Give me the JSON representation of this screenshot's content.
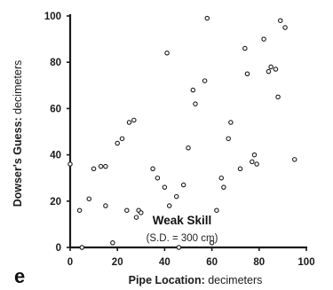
{
  "panel_label": "e",
  "chart_data": {
    "type": "scatter",
    "xlabel": {
      "bold": "Pipe Location:",
      "unit": "decimeters"
    },
    "ylabel": {
      "bold": "Dowser's Guess:",
      "unit": "decimeters"
    },
    "xlim": [
      0,
      100
    ],
    "ylim": [
      0,
      100
    ],
    "xticks": [
      "0",
      "20",
      "40",
      "60",
      "80",
      "100"
    ],
    "yticks": [
      "0",
      "20",
      "40",
      "60",
      "80",
      "100"
    ],
    "grid": false,
    "annotation": {
      "title": "Weak Skill",
      "subtitle": "(S.D. = 300 cm)"
    },
    "points": [
      [
        0,
        36
      ],
      [
        4,
        16
      ],
      [
        5,
        0
      ],
      [
        8,
        21
      ],
      [
        10,
        34
      ],
      [
        13,
        35
      ],
      [
        15,
        35
      ],
      [
        15,
        18
      ],
      [
        18,
        2
      ],
      [
        20,
        45
      ],
      [
        22,
        47
      ],
      [
        24,
        16
      ],
      [
        25,
        54
      ],
      [
        27,
        55
      ],
      [
        28,
        13
      ],
      [
        29,
        16
      ],
      [
        30,
        15
      ],
      [
        35,
        34
      ],
      [
        37,
        30
      ],
      [
        40,
        26
      ],
      [
        41,
        84
      ],
      [
        42,
        18
      ],
      [
        45,
        22
      ],
      [
        46,
        0
      ],
      [
        48,
        27
      ],
      [
        50,
        43
      ],
      [
        52,
        68
      ],
      [
        53,
        62
      ],
      [
        57,
        72
      ],
      [
        58,
        99
      ],
      [
        60,
        2
      ],
      [
        62,
        16
      ],
      [
        64,
        30
      ],
      [
        65,
        26
      ],
      [
        67,
        47
      ],
      [
        68,
        54
      ],
      [
        72,
        34
      ],
      [
        74,
        86
      ],
      [
        75,
        75
      ],
      [
        77,
        37
      ],
      [
        78,
        40
      ],
      [
        79,
        36
      ],
      [
        82,
        90
      ],
      [
        84,
        76
      ],
      [
        85,
        78
      ],
      [
        87,
        77
      ],
      [
        88,
        65
      ],
      [
        89,
        98
      ],
      [
        91,
        95
      ],
      [
        95,
        38
      ]
    ]
  }
}
